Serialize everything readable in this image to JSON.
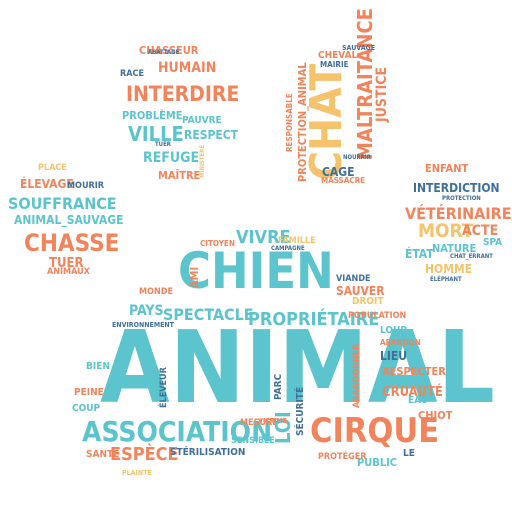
{
  "colors": {
    "teal": "#5bc4cc",
    "orange": "#f2835a",
    "yellow": "#f5c36b",
    "blue": "#3f6f9a"
  },
  "words": [
    "CHASSEUR",
    "HUMAIN",
    "INTERDIRE",
    "RACE",
    "ABATTAGE",
    "PROBLÈME",
    "PAUVRE",
    "VILLE",
    "RESPECT",
    "REFUGE",
    "MAÎTRE",
    "TUER",
    "MINISTÈRE",
    "CHAT",
    "MALTRAITANCE",
    "PROTECTION_ANIMAL",
    "JUSTICE",
    "RESPONSABLE",
    "CHEVAL",
    "MAIRIE",
    "SAUVAGE",
    "CAGE",
    "MASSACRE",
    "NOURRIR",
    "ENFANT",
    "SOUFFRANCE",
    "ÉLEVAGE",
    "MOURIR",
    "ANIMAL_SAUVAGE",
    "CHASSE",
    "PLACE",
    "ANIMAUX",
    "TUER",
    "VÉTÉRINAIRE",
    "INTERDICTION",
    "MORT",
    "ACTE",
    "NATURE",
    "ÉTAT",
    "SPA",
    "HOMME",
    "CHAT_ERRANT",
    "PROTECTION",
    "ÉLÉPHANT",
    "CHIEN",
    "ANIMAL",
    "ASSOCIATION",
    "CIRQUE",
    "ESPÈCE",
    "VIVRE",
    "CITOYEN",
    "SPECTACLE",
    "PROPRIÉTAIRE",
    "PAYS",
    "ÉLEVEUR",
    "AMI",
    "MONDE",
    "SAUVER",
    "DROIT",
    "POPULATION",
    "VIANDE",
    "LOUP",
    "CRUAUTÉ",
    "RESPECTER",
    "LIEU",
    "ABANDON",
    "SÉCURITÉ",
    "STÉRILISATION",
    "SENSIBLE",
    "MESURE",
    "LOI",
    "PARC",
    "PUBLIC",
    "PROTÉGER",
    "CHIOT",
    "FAMILLE",
    "EAU",
    "COUP",
    "SANTÉ",
    "PEINE",
    "BIEN",
    "ENVIRONNEMENT",
    "CAMPAGNE",
    "VICTIME",
    "ABANDONNER",
    "LE",
    "PLAINTE"
  ]
}
